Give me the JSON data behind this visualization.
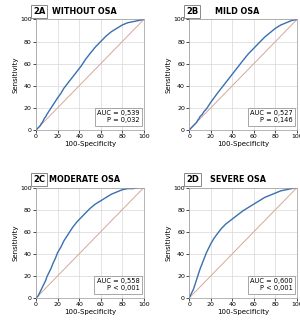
{
  "panels": [
    {
      "label": "2A",
      "title": "WITHOUT OSA",
      "auc_text": "AUC = 0,539",
      "p_text": "P = 0,032",
      "roc_x": [
        0,
        1,
        2,
        3,
        4,
        5,
        6,
        7,
        8,
        9,
        10,
        12,
        14,
        16,
        18,
        20,
        23,
        26,
        30,
        34,
        38,
        42,
        46,
        50,
        55,
        60,
        65,
        70,
        75,
        80,
        85,
        90,
        95,
        100
      ],
      "roc_y": [
        0,
        1,
        2,
        3,
        4,
        6,
        7,
        9,
        11,
        12,
        14,
        17,
        20,
        23,
        26,
        29,
        33,
        38,
        43,
        48,
        53,
        58,
        64,
        69,
        75,
        80,
        85,
        89,
        92,
        95,
        97,
        98,
        99,
        100
      ]
    },
    {
      "label": "2B",
      "title": "MILD OSA",
      "auc_text": "AUC = 0,527",
      "p_text": "P = 0,146",
      "roc_x": [
        0,
        1,
        2,
        3,
        4,
        5,
        6,
        7,
        8,
        9,
        10,
        12,
        14,
        16,
        18,
        20,
        23,
        26,
        30,
        34,
        38,
        42,
        46,
        50,
        55,
        60,
        65,
        70,
        75,
        80,
        85,
        90,
        95,
        100
      ],
      "roc_y": [
        0,
        1,
        2,
        3,
        4,
        5,
        6,
        7,
        9,
        10,
        12,
        14,
        17,
        19,
        22,
        25,
        29,
        33,
        38,
        43,
        48,
        53,
        58,
        63,
        69,
        74,
        79,
        84,
        88,
        92,
        95,
        97,
        99,
        100
      ]
    },
    {
      "label": "2C",
      "title": "MODERATE OSA",
      "auc_text": "AUC = 0,558",
      "p_text": "P < 0,001",
      "roc_x": [
        0,
        1,
        2,
        3,
        4,
        5,
        6,
        7,
        8,
        9,
        10,
        12,
        14,
        16,
        18,
        20,
        23,
        26,
        30,
        34,
        38,
        42,
        46,
        50,
        55,
        60,
        65,
        70,
        75,
        80,
        85,
        90,
        95,
        100
      ],
      "roc_y": [
        0,
        1,
        2,
        4,
        6,
        8,
        10,
        12,
        14,
        16,
        19,
        23,
        27,
        32,
        36,
        41,
        46,
        52,
        58,
        64,
        69,
        73,
        77,
        81,
        85,
        88,
        91,
        94,
        96,
        98,
        99,
        99,
        100,
        100
      ]
    },
    {
      "label": "2D",
      "title": "SEVERE OSA",
      "auc_text": "AUC = 0,600",
      "p_text": "P < 0,001",
      "roc_x": [
        0,
        1,
        2,
        3,
        4,
        5,
        6,
        7,
        8,
        9,
        10,
        12,
        14,
        16,
        18,
        20,
        23,
        26,
        30,
        34,
        38,
        42,
        46,
        50,
        55,
        60,
        65,
        70,
        75,
        80,
        85,
        90,
        95,
        100
      ],
      "roc_y": [
        0,
        2,
        4,
        6,
        8,
        11,
        14,
        17,
        20,
        23,
        26,
        31,
        36,
        41,
        45,
        49,
        54,
        58,
        63,
        67,
        70,
        73,
        76,
        79,
        82,
        85,
        88,
        91,
        93,
        95,
        97,
        98,
        99,
        100
      ]
    }
  ],
  "roc_color": "#3a6faf",
  "diag_color": "#d4a89a",
  "grid_color": "#d8d8d8",
  "bg_color": "#ffffff",
  "xlabel": "100-Specificity",
  "ylabel": "Sensitivity",
  "tick_vals": [
    0,
    20,
    40,
    60,
    80,
    100
  ],
  "label_fontsize": 5.0,
  "title_fontsize": 5.8,
  "panel_label_fontsize": 6.0,
  "annot_fontsize": 4.8
}
